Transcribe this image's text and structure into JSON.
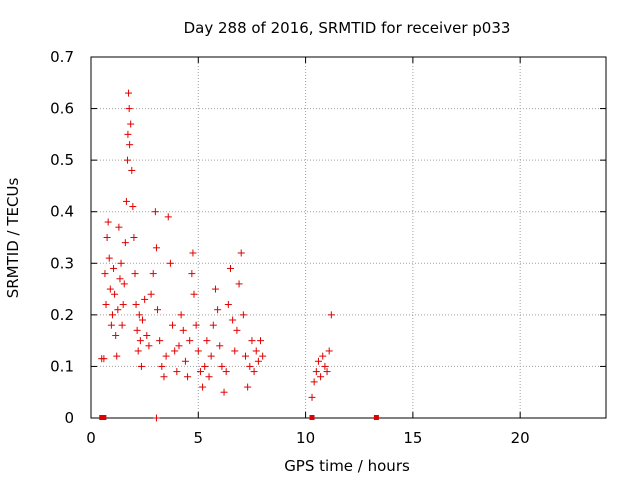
{
  "chart_data": {
    "type": "scatter",
    "title": "Day 288 of 2016, SRMTID for receiver p033",
    "xlabel": "GPS time / hours",
    "ylabel": "SRMTID / TECUs",
    "xlim": [
      0,
      24
    ],
    "ylim": [
      0,
      0.7
    ],
    "x_ticks": [
      0,
      5,
      10,
      15,
      20
    ],
    "y_ticks": [
      0,
      0.1,
      0.2,
      0.3,
      0.4,
      0.5,
      0.6,
      0.7
    ],
    "grid": true,
    "marker": "plus",
    "color": "#e00000",
    "series": [
      {
        "name": "SRMTID",
        "points": [
          [
            0.5,
            0.115
          ],
          [
            0.6,
            0.115
          ],
          [
            0.65,
            0.28
          ],
          [
            0.7,
            0.22
          ],
          [
            0.75,
            0.35
          ],
          [
            0.8,
            0.38
          ],
          [
            0.85,
            0.31
          ],
          [
            0.9,
            0.25
          ],
          [
            0.95,
            0.18
          ],
          [
            1.0,
            0.2
          ],
          [
            1.05,
            0.29
          ],
          [
            1.1,
            0.24
          ],
          [
            1.15,
            0.16
          ],
          [
            1.2,
            0.12
          ],
          [
            1.25,
            0.21
          ],
          [
            1.3,
            0.37
          ],
          [
            1.35,
            0.27
          ],
          [
            1.4,
            0.3
          ],
          [
            1.45,
            0.18
          ],
          [
            1.5,
            0.22
          ],
          [
            1.55,
            0.26
          ],
          [
            1.6,
            0.34
          ],
          [
            1.65,
            0.42
          ],
          [
            1.7,
            0.5
          ],
          [
            1.72,
            0.55
          ],
          [
            1.75,
            0.63
          ],
          [
            1.78,
            0.6
          ],
          [
            1.8,
            0.53
          ],
          [
            1.85,
            0.57
          ],
          [
            1.9,
            0.48
          ],
          [
            1.95,
            0.41
          ],
          [
            2.0,
            0.35
          ],
          [
            2.05,
            0.28
          ],
          [
            2.1,
            0.22
          ],
          [
            2.15,
            0.17
          ],
          [
            2.2,
            0.13
          ],
          [
            2.25,
            0.2
          ],
          [
            2.3,
            0.15
          ],
          [
            2.35,
            0.1
          ],
          [
            2.4,
            0.19
          ],
          [
            2.5,
            0.23
          ],
          [
            2.6,
            0.16
          ],
          [
            2.7,
            0.14
          ],
          [
            2.8,
            0.24
          ],
          [
            2.9,
            0.28
          ],
          [
            3.0,
            0.4
          ],
          [
            3.05,
            0.33
          ],
          [
            3.1,
            0.21
          ],
          [
            3.2,
            0.15
          ],
          [
            3.3,
            0.1
          ],
          [
            3.4,
            0.08
          ],
          [
            3.5,
            0.12
          ],
          [
            3.6,
            0.39
          ],
          [
            3.7,
            0.3
          ],
          [
            3.8,
            0.18
          ],
          [
            3.9,
            0.13
          ],
          [
            4.0,
            0.09
          ],
          [
            4.1,
            0.14
          ],
          [
            4.2,
            0.2
          ],
          [
            4.3,
            0.17
          ],
          [
            4.4,
            0.11
          ],
          [
            4.5,
            0.08
          ],
          [
            4.6,
            0.15
          ],
          [
            4.7,
            0.28
          ],
          [
            4.75,
            0.32
          ],
          [
            4.8,
            0.24
          ],
          [
            4.9,
            0.18
          ],
          [
            5.0,
            0.13
          ],
          [
            5.1,
            0.09
          ],
          [
            5.2,
            0.06
          ],
          [
            5.3,
            0.1
          ],
          [
            5.4,
            0.15
          ],
          [
            5.5,
            0.08
          ],
          [
            5.6,
            0.12
          ],
          [
            5.7,
            0.18
          ],
          [
            5.8,
            0.25
          ],
          [
            5.9,
            0.21
          ],
          [
            6.0,
            0.14
          ],
          [
            6.1,
            0.1
          ],
          [
            6.2,
            0.05
          ],
          [
            6.3,
            0.09
          ],
          [
            6.4,
            0.22
          ],
          [
            6.5,
            0.29
          ],
          [
            6.6,
            0.19
          ],
          [
            6.7,
            0.13
          ],
          [
            6.8,
            0.17
          ],
          [
            6.9,
            0.26
          ],
          [
            7.0,
            0.32
          ],
          [
            7.1,
            0.2
          ],
          [
            7.2,
            0.12
          ],
          [
            7.3,
            0.06
          ],
          [
            7.4,
            0.1
          ],
          [
            7.5,
            0.15
          ],
          [
            7.6,
            0.09
          ],
          [
            7.7,
            0.13
          ],
          [
            7.8,
            0.11
          ],
          [
            7.9,
            0.15
          ],
          [
            8.0,
            0.12
          ],
          [
            10.3,
            0.04
          ],
          [
            10.4,
            0.07
          ],
          [
            10.5,
            0.09
          ],
          [
            10.6,
            0.11
          ],
          [
            10.7,
            0.08
          ],
          [
            10.8,
            0.12
          ],
          [
            10.9,
            0.1
          ],
          [
            11.0,
            0.09
          ],
          [
            11.1,
            0.13
          ],
          [
            11.2,
            0.2
          ]
        ]
      }
    ],
    "zero_markers_x": [
      0.5,
      0.6,
      10.3,
      13.3
    ],
    "extra_zero_plus_x": [
      3.05
    ]
  }
}
